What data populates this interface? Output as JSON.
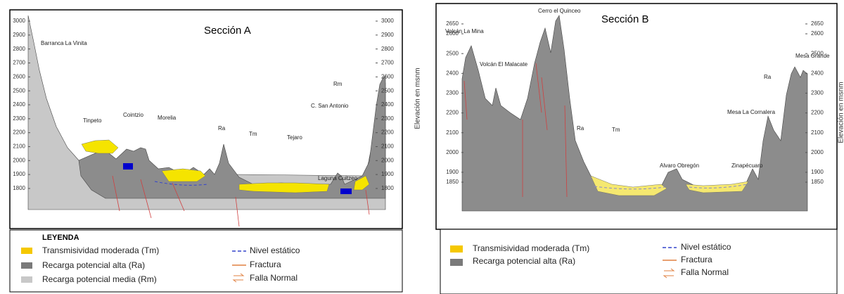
{
  "section_a": {
    "title": "Sección A",
    "axis_label": "Elevación en msnm",
    "yticks_left": [
      3000,
      2900,
      2800,
      2700,
      2600,
      2500,
      2400,
      2300,
      2200,
      2100,
      2000,
      1900,
      1800
    ],
    "yticks_right": [
      3000,
      2900,
      2800,
      2700,
      2600,
      2500,
      2400,
      2300,
      2200,
      2100,
      2000,
      1900,
      1800
    ],
    "labels": [
      "Barranca La Vinita",
      "Tinpeto",
      "Cointzio",
      "Morelia",
      "Ra",
      "Tm",
      "Tejaro",
      "Laguna Cuitzeo",
      "Rm",
      "C. San Antonio"
    ],
    "legend": {
      "title": "LEYENDA",
      "items": [
        "Transmisividad moderada (Tm)",
        "Recarga potencial alta (Ra)",
        "Recarga potencial media (Rm)",
        "Nivel estático",
        "Fractura",
        "Falla Normal"
      ]
    }
  },
  "section_b": {
    "title": "Sección B",
    "axis_label": "Elevación en msnm",
    "yticks_left": [
      2650,
      2600,
      2500,
      2400,
      2300,
      2200,
      2100,
      2000,
      1900,
      1850
    ],
    "yticks_right": [
      2650,
      2600,
      2500,
      2400,
      2300,
      2200,
      2100,
      2000,
      1900,
      1850
    ],
    "labels": [
      "Volcán  La Mina",
      "Volcán El Malacate",
      "Cerro el Quinceo",
      "Ra",
      "Tm",
      "Alvaro Obregón",
      "Zinapécuaro",
      "Ra",
      "Mesa La Cornalera",
      "Mesa Grande"
    ],
    "legend": {
      "items": [
        "Transmisividad moderada (Tm)",
        "Recarga potencial alta (Ra)",
        "Nivel estático",
        "Fractura",
        "Falla Normal"
      ]
    }
  }
}
